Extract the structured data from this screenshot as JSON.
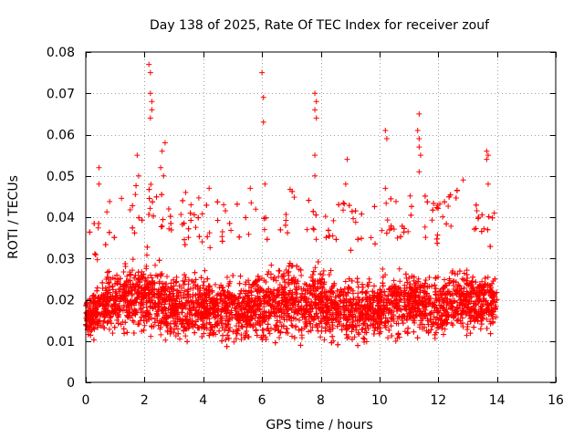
{
  "chart_data": {
    "type": "scatter",
    "title": "Day 138 of 2025, Rate Of TEC Index for receiver zouf",
    "xlabel": "GPS time / hours",
    "ylabel": "ROTI / TECUs",
    "xlim": [
      0,
      16
    ],
    "ylim": [
      0,
      0.08
    ],
    "xticks": [
      0,
      2,
      4,
      6,
      8,
      10,
      12,
      14,
      16
    ],
    "xtick_labels": [
      "0",
      "2",
      "4",
      "6",
      "8",
      "10",
      "12",
      "14",
      "16"
    ],
    "yticks": [
      0,
      0.01,
      0.02,
      0.03,
      0.04,
      0.05,
      0.06,
      0.07,
      0.08
    ],
    "ytick_labels": [
      "0",
      "0.01",
      "0.02",
      "0.03",
      "0.04",
      "0.05",
      "0.06",
      "0.07",
      "0.08"
    ],
    "grid": true,
    "marker": "+",
    "color": "#ff0000",
    "bands": [
      {
        "x": 0.0,
        "low": 0.009,
        "high": 0.024
      },
      {
        "x": 0.5,
        "low": 0.01,
        "high": 0.03
      },
      {
        "x": 1.0,
        "low": 0.009,
        "high": 0.033
      },
      {
        "x": 1.5,
        "low": 0.009,
        "high": 0.035
      },
      {
        "x": 2.0,
        "low": 0.008,
        "high": 0.038
      },
      {
        "x": 2.5,
        "low": 0.008,
        "high": 0.036
      },
      {
        "x": 3.0,
        "low": 0.007,
        "high": 0.034
      },
      {
        "x": 3.5,
        "low": 0.007,
        "high": 0.032
      },
      {
        "x": 4.0,
        "low": 0.008,
        "high": 0.033
      },
      {
        "x": 4.5,
        "low": 0.008,
        "high": 0.032
      },
      {
        "x": 5.0,
        "low": 0.008,
        "high": 0.031
      },
      {
        "x": 5.5,
        "low": 0.008,
        "high": 0.032
      },
      {
        "x": 6.0,
        "low": 0.008,
        "high": 0.034
      },
      {
        "x": 6.5,
        "low": 0.008,
        "high": 0.035
      },
      {
        "x": 7.0,
        "low": 0.008,
        "high": 0.036
      },
      {
        "x": 7.5,
        "low": 0.007,
        "high": 0.034
      },
      {
        "x": 8.0,
        "low": 0.008,
        "high": 0.034
      },
      {
        "x": 8.5,
        "low": 0.008,
        "high": 0.032
      },
      {
        "x": 9.0,
        "low": 0.007,
        "high": 0.031
      },
      {
        "x": 9.5,
        "low": 0.008,
        "high": 0.031
      },
      {
        "x": 10.0,
        "low": 0.008,
        "high": 0.032
      },
      {
        "x": 10.5,
        "low": 0.008,
        "high": 0.033
      },
      {
        "x": 11.0,
        "low": 0.008,
        "high": 0.034
      },
      {
        "x": 11.5,
        "low": 0.008,
        "high": 0.034
      },
      {
        "x": 12.0,
        "low": 0.008,
        "high": 0.033
      },
      {
        "x": 12.5,
        "low": 0.009,
        "high": 0.035
      },
      {
        "x": 13.0,
        "low": 0.009,
        "high": 0.034
      },
      {
        "x": 13.5,
        "low": 0.009,
        "high": 0.033
      },
      {
        "x": 14.0,
        "low": 0.01,
        "high": 0.03
      }
    ],
    "outliers": [
      {
        "x": 0.45,
        "y": 0.052
      },
      {
        "x": 0.45,
        "y": 0.048
      },
      {
        "x": 1.75,
        "y": 0.055
      },
      {
        "x": 1.8,
        "y": 0.05
      },
      {
        "x": 2.15,
        "y": 0.077
      },
      {
        "x": 2.2,
        "y": 0.075
      },
      {
        "x": 2.2,
        "y": 0.07
      },
      {
        "x": 2.25,
        "y": 0.068
      },
      {
        "x": 2.25,
        "y": 0.066
      },
      {
        "x": 2.2,
        "y": 0.064
      },
      {
        "x": 2.6,
        "y": 0.056
      },
      {
        "x": 2.7,
        "y": 0.058
      },
      {
        "x": 2.55,
        "y": 0.052
      },
      {
        "x": 2.65,
        "y": 0.05
      },
      {
        "x": 6.0,
        "y": 0.075
      },
      {
        "x": 6.05,
        "y": 0.069
      },
      {
        "x": 6.05,
        "y": 0.063
      },
      {
        "x": 6.1,
        "y": 0.048
      },
      {
        "x": 7.8,
        "y": 0.07
      },
      {
        "x": 7.85,
        "y": 0.068
      },
      {
        "x": 7.8,
        "y": 0.066
      },
      {
        "x": 7.85,
        "y": 0.064
      },
      {
        "x": 7.8,
        "y": 0.055
      },
      {
        "x": 7.8,
        "y": 0.05
      },
      {
        "x": 8.9,
        "y": 0.054
      },
      {
        "x": 8.85,
        "y": 0.048
      },
      {
        "x": 10.2,
        "y": 0.061
      },
      {
        "x": 10.25,
        "y": 0.059
      },
      {
        "x": 10.2,
        "y": 0.047
      },
      {
        "x": 11.35,
        "y": 0.065
      },
      {
        "x": 11.3,
        "y": 0.061
      },
      {
        "x": 11.35,
        "y": 0.059
      },
      {
        "x": 11.35,
        "y": 0.057
      },
      {
        "x": 11.4,
        "y": 0.055
      },
      {
        "x": 11.35,
        "y": 0.051
      },
      {
        "x": 13.65,
        "y": 0.056
      },
      {
        "x": 13.7,
        "y": 0.055
      },
      {
        "x": 13.65,
        "y": 0.054
      },
      {
        "x": 13.7,
        "y": 0.048
      },
      {
        "x": 12.85,
        "y": 0.049
      },
      {
        "x": 5.6,
        "y": 0.047
      },
      {
        "x": 4.2,
        "y": 0.047
      },
      {
        "x": 3.4,
        "y": 0.046
      }
    ]
  }
}
